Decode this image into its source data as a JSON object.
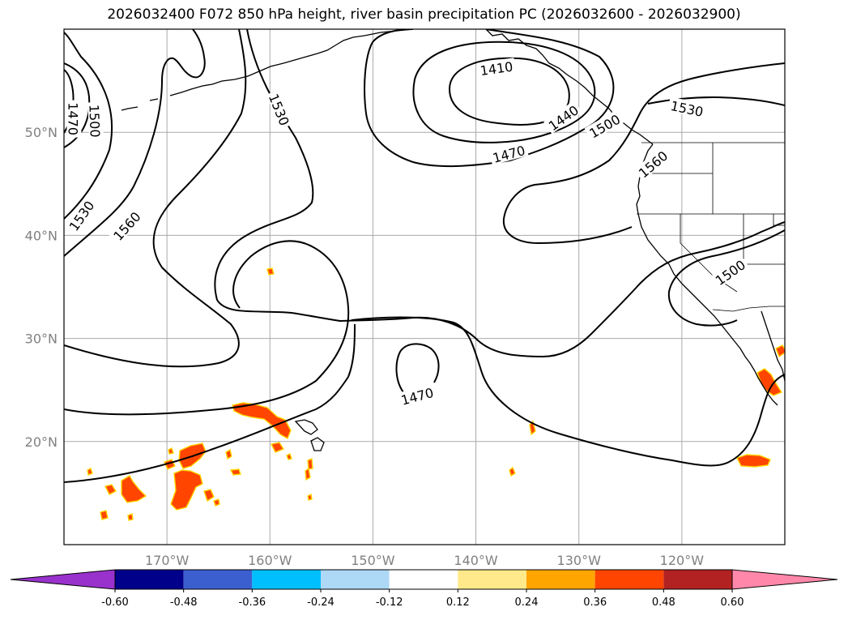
{
  "title": "2026032400 F072 850 hPa height, river basin precipitation PC (2026032600 - 2026032900)",
  "map": {
    "projection": "PlateCarree",
    "lon_range": [
      -180,
      -110
    ],
    "lat_range": [
      10,
      60
    ],
    "grid": true,
    "lat_ticks": [
      {
        "value": 20,
        "label": "20°N"
      },
      {
        "value": 30,
        "label": "30°N"
      },
      {
        "value": 40,
        "label": "40°N"
      },
      {
        "value": 50,
        "label": "50°N"
      }
    ],
    "lon_ticks": [
      {
        "value": -170,
        "label": "170°W"
      },
      {
        "value": -160,
        "label": "160°W"
      },
      {
        "value": -150,
        "label": "150°W"
      },
      {
        "value": -140,
        "label": "140°W"
      },
      {
        "value": -130,
        "label": "130°W"
      },
      {
        "value": -120,
        "label": "120°W"
      }
    ],
    "contour_labels": [
      "1410",
      "1440",
      "1470",
      "1500",
      "1530",
      "1560"
    ],
    "labels_shown": [
      {
        "text": "1410",
        "lon": -138,
        "lat": 56.2,
        "rotate": -8
      },
      {
        "text": "1440",
        "lon": -131.5,
        "lat": 51.4,
        "rotate": -35
      },
      {
        "text": "1470",
        "lon": -136.8,
        "lat": 47.9,
        "rotate": -15
      },
      {
        "text": "1500",
        "lon": -127.5,
        "lat": 50.6,
        "rotate": -30
      },
      {
        "text": "1560",
        "lon": -122.8,
        "lat": 46.9,
        "rotate": -40
      },
      {
        "text": "1530",
        "lon": -119.5,
        "lat": 52.3,
        "rotate": 12
      },
      {
        "text": "1530",
        "lon": -159.1,
        "lat": 52.2,
        "rotate": 68
      },
      {
        "text": "1500",
        "lon": -177.0,
        "lat": 51.1,
        "rotate": 88
      },
      {
        "text": "1470",
        "lon": -179.1,
        "lat": 51.3,
        "rotate": 90
      },
      {
        "text": "1530",
        "lon": -178.3,
        "lat": 41.9,
        "rotate": -55
      },
      {
        "text": "1560",
        "lon": -173.9,
        "lat": 40.9,
        "rotate": -48
      },
      {
        "text": "1470",
        "lon": -145.7,
        "lat": 24.4,
        "rotate": -15
      },
      {
        "text": "1500",
        "lon": -115.3,
        "lat": 36.4,
        "rotate": -35
      }
    ],
    "colors": {
      "contour": "#000000",
      "coast": "#000000",
      "grid": "#a9a9a9",
      "precip": "#ff4500",
      "precip_edge": "#ffd700",
      "ocean": "#ffffff"
    }
  },
  "colorbar": {
    "ticks": [
      "-0.60",
      "-0.48",
      "-0.36",
      "-0.24",
      "-0.12",
      "0.12",
      "0.24",
      "0.36",
      "0.48",
      "0.60"
    ],
    "colors": [
      "#9932cc",
      "#00008b",
      "#3c5fd0",
      "#00bfff",
      "#add8f6",
      "#ffffff",
      "#ffe98a",
      "#ffa500",
      "#ff4500",
      "#b22222",
      "#ff88aa"
    ]
  }
}
